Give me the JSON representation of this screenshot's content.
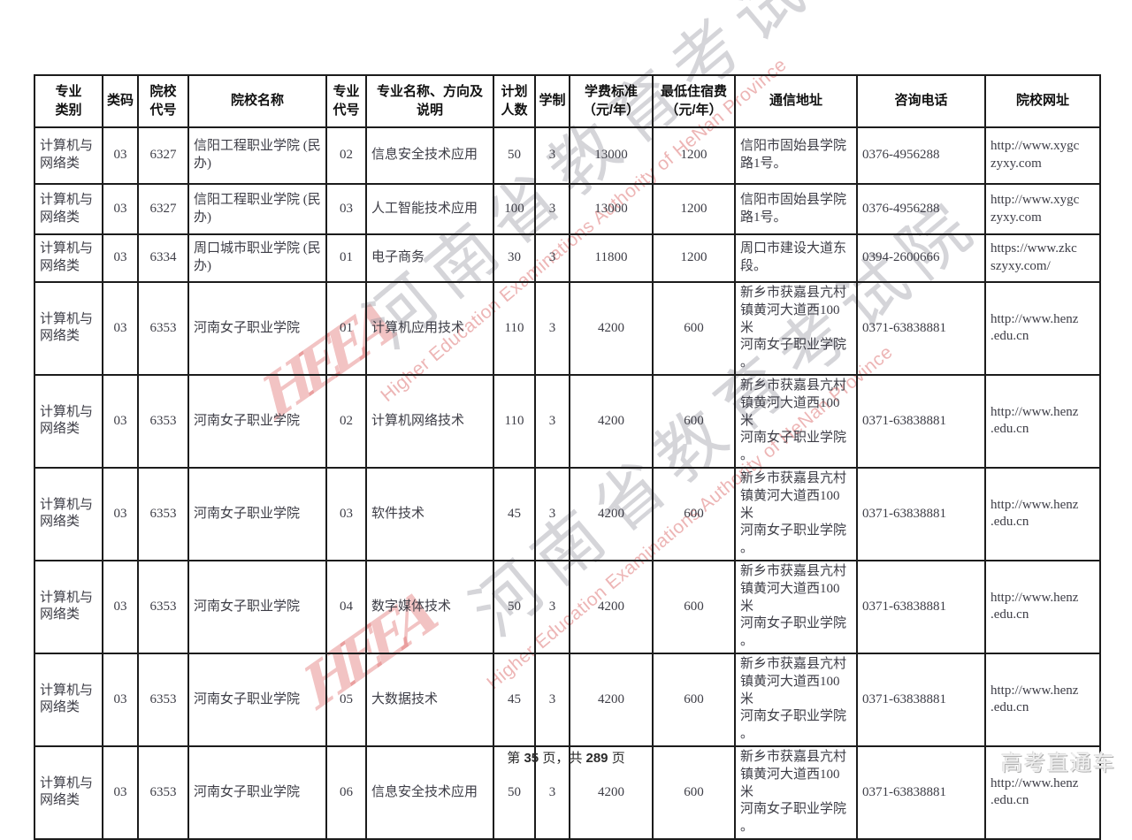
{
  "table": {
    "headers": [
      "专业\n类别",
      "类码",
      "院校\n代号",
      "院校名称",
      "专业\n代号",
      "专业名称、方向及\n说明",
      "计划\n人数",
      "学制",
      "学费标准\n（元/年）",
      "最低住宿费\n（元/年）",
      "通信地址",
      "咨询电话",
      "院校网址"
    ],
    "rows": [
      [
        "计算机与\n网络类",
        "03",
        "6327",
        "信阳工程职业学院 (民\n办)",
        "02",
        "信息安全技术应用",
        "50",
        "3",
        "13000",
        "1200",
        "信阳市固始县学院\n路1号。",
        "0376-4956288",
        "http://www.xygc\nzyxy.com"
      ],
      [
        "计算机与\n网络类",
        "03",
        "6327",
        "信阳工程职业学院 (民\n办)",
        "03",
        "人工智能技术应用",
        "100",
        "3",
        "13000",
        "1200",
        "信阳市固始县学院\n路1号。",
        "0376-4956288",
        "http://www.xygc\nzyxy.com"
      ],
      [
        "计算机与\n网络类",
        "03",
        "6334",
        "周口城市职业学院 (民\n办)",
        "01",
        "电子商务",
        "30",
        "3",
        "11800",
        "1200",
        "周口市建设大道东\n段。",
        "0394-2600666",
        "https://www.zkc\nszyxy.com/"
      ],
      [
        "计算机与\n网络类",
        "03",
        "6353",
        "河南女子职业学院",
        "01",
        "计算机应用技术",
        "110",
        "3",
        "4200",
        "600",
        "新乡市获嘉县亢村\n镇黄河大道西100米\n河南女子职业学院\n。",
        "0371-63838881",
        "http://www.henz\n.edu.cn"
      ],
      [
        "计算机与\n网络类",
        "03",
        "6353",
        "河南女子职业学院",
        "02",
        "计算机网络技术",
        "110",
        "3",
        "4200",
        "600",
        "新乡市获嘉县亢村\n镇黄河大道西100米\n河南女子职业学院\n。",
        "0371-63838881",
        "http://www.henz\n.edu.cn"
      ],
      [
        "计算机与\n网络类",
        "03",
        "6353",
        "河南女子职业学院",
        "03",
        "软件技术",
        "45",
        "3",
        "4200",
        "600",
        "新乡市获嘉县亢村\n镇黄河大道西100米\n河南女子职业学院\n。",
        "0371-63838881",
        "http://www.henz\n.edu.cn"
      ],
      [
        "计算机与\n网络类",
        "03",
        "6353",
        "河南女子职业学院",
        "04",
        "数字媒体技术",
        "50",
        "3",
        "4200",
        "600",
        "新乡市获嘉县亢村\n镇黄河大道西100米\n河南女子职业学院\n。",
        "0371-63838881",
        "http://www.henz\n.edu.cn"
      ],
      [
        "计算机与\n网络类",
        "03",
        "6353",
        "河南女子职业学院",
        "05",
        "大数据技术",
        "45",
        "3",
        "4200",
        "600",
        "新乡市获嘉县亢村\n镇黄河大道西100米\n河南女子职业学院\n。",
        "0371-63838881",
        "http://www.henz\n.edu.cn"
      ],
      [
        "计算机与\n网络类",
        "03",
        "6353",
        "河南女子职业学院",
        "06",
        "信息安全技术应用",
        "50",
        "3",
        "4200",
        "600",
        "新乡市获嘉县亢村\n镇黄河大道西100米\n河南女子职业学院\n。",
        "0371-63838881",
        "http://www.henz\n.edu.cn"
      ]
    ]
  },
  "watermark": {
    "logo_text": "HEEA",
    "cn_text": "河南省教育考试院",
    "en_text": "Higher Education Examinations Authority of HeNan Province"
  },
  "footer": {
    "prefix": "第 ",
    "page_number": "35",
    "mid": " 页，共 ",
    "total_pages": "289",
    "suffix": " 页",
    "brand": "高考直通车"
  }
}
